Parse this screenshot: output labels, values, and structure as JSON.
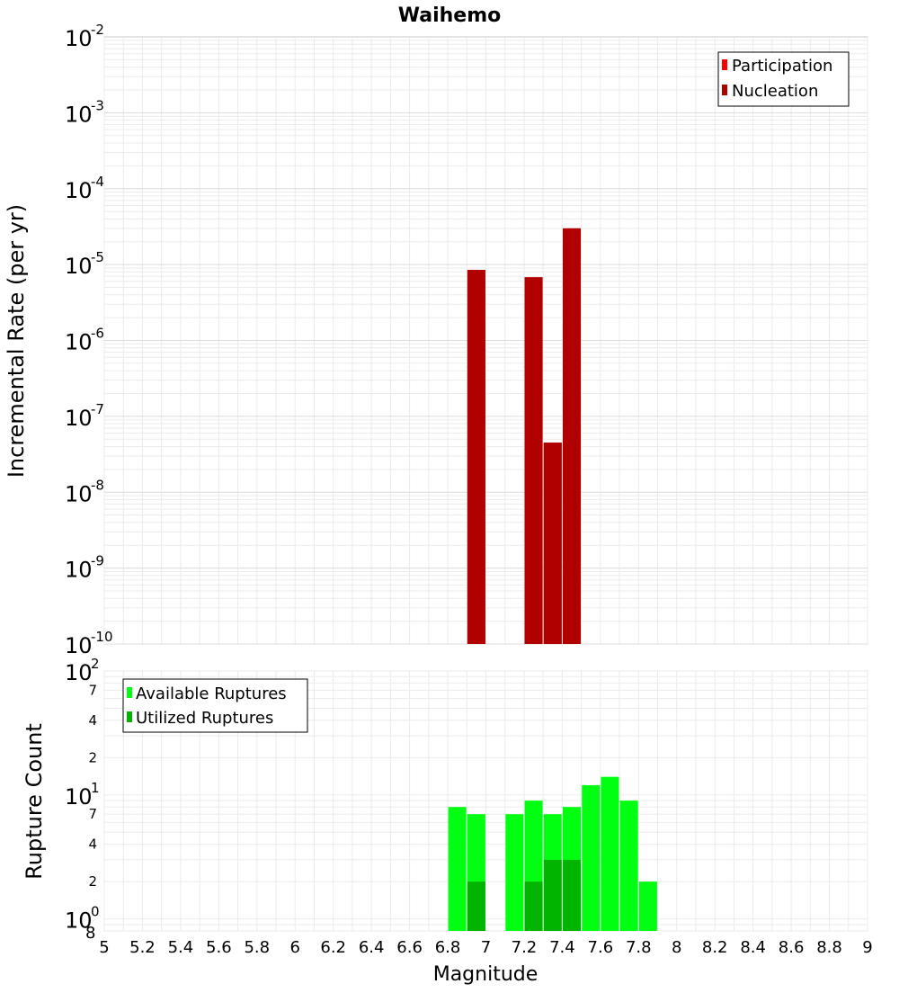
{
  "chart_data": [
    {
      "type": "bar",
      "title": "Waihemo",
      "ylabel": "Incremental Rate (per yr)",
      "xlabel": "",
      "yscale": "log",
      "xlim": [
        5,
        9
      ],
      "ylim": [
        1e-10,
        0.01
      ],
      "y_tick_exponents": [
        -10,
        -9,
        -8,
        -7,
        -6,
        -5,
        -4,
        -3,
        -2
      ],
      "legend_position": "top-right",
      "series": [
        {
          "name": "Participation",
          "color": "#ff0000",
          "x": [
            6.95,
            7.25,
            7.35,
            7.45
          ],
          "values": [
            8.5e-06,
            6.8e-06,
            4.5e-08,
            3e-05
          ]
        },
        {
          "name": "Nucleation",
          "color": "#b00000",
          "x": [
            6.95,
            7.25,
            7.35,
            7.45
          ],
          "values": [
            8.5e-06,
            6.8e-06,
            4.5e-08,
            3e-05
          ]
        }
      ]
    },
    {
      "type": "bar",
      "title": "",
      "ylabel": "Rupture Count",
      "xlabel": "Magnitude",
      "yscale": "log",
      "xlim": [
        5,
        9
      ],
      "ylim": [
        0.8,
        100
      ],
      "x_ticks": [
        "5",
        "5.2",
        "5.4",
        "5.6",
        "5.8",
        "6",
        "6.2",
        "6.4",
        "6.6",
        "6.8",
        "7",
        "7.2",
        "7.4",
        "7.6",
        "7.8",
        "8",
        "8.2",
        "8.4",
        "8.6",
        "8.8",
        "9"
      ],
      "y_major_exponents": [
        0,
        1,
        2
      ],
      "y_minor_labels": [
        "2",
        "4",
        "7"
      ],
      "y_bottom_extra_label": "8",
      "legend_position": "top-left",
      "series": [
        {
          "name": "Available Ruptures",
          "color": "#00ff10",
          "x": [
            6.85,
            6.95,
            7.15,
            7.25,
            7.35,
            7.45,
            7.55,
            7.65,
            7.75,
            7.85
          ],
          "values": [
            8,
            7,
            7,
            9,
            7,
            8,
            12,
            14,
            9,
            2
          ]
        },
        {
          "name": "Utilized Ruptures",
          "color": "#00b400",
          "x": [
            6.95,
            7.25,
            7.35,
            7.45
          ],
          "values": [
            2,
            2,
            3,
            3
          ]
        }
      ]
    }
  ]
}
